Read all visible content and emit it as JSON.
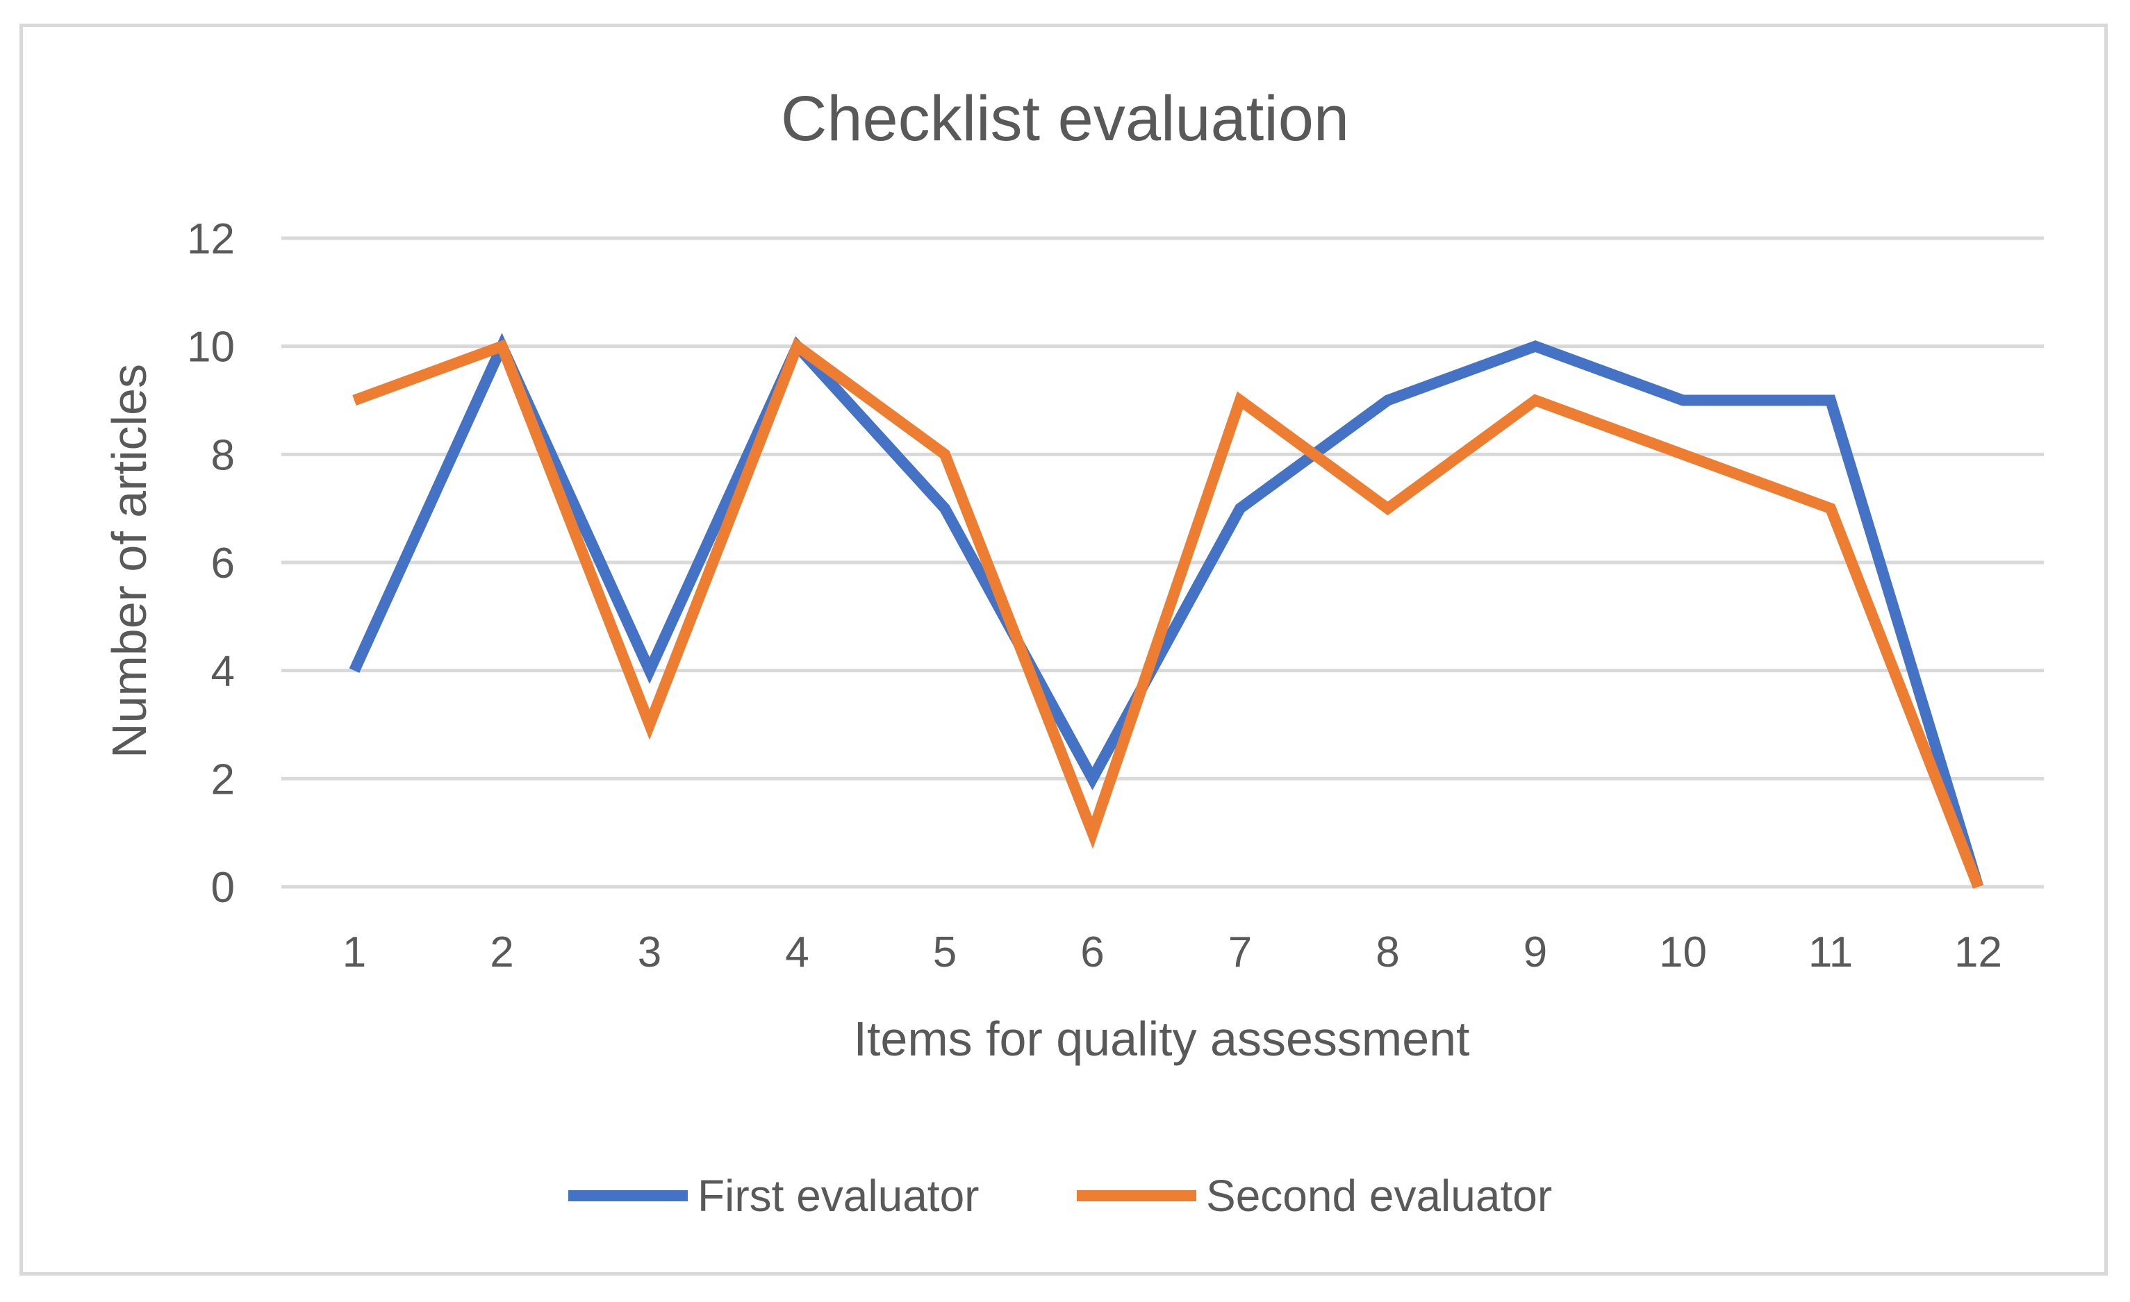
{
  "chart_data": {
    "type": "line",
    "title": "Checklist evaluation",
    "xlabel": "Items for quality assessment",
    "ylabel": "Number of articles",
    "categories": [
      "1",
      "2",
      "3",
      "4",
      "5",
      "6",
      "7",
      "8",
      "9",
      "10",
      "11",
      "12"
    ],
    "series": [
      {
        "name": "First evaluator",
        "color": "#4472c4",
        "values": [
          4,
          10,
          4,
          10,
          7,
          2,
          7,
          9,
          10,
          9,
          9,
          0
        ]
      },
      {
        "name": "Second evaluator",
        "color": "#ed7d31",
        "values": [
          9,
          10,
          3,
          10,
          8,
          1,
          9,
          7,
          9,
          8,
          7,
          0
        ]
      }
    ],
    "ylim": [
      0,
      12
    ],
    "yticks": [
      "0",
      "2",
      "4",
      "6",
      "8",
      "10",
      "12"
    ],
    "grid": "horizontal",
    "legend_position": "bottom"
  }
}
